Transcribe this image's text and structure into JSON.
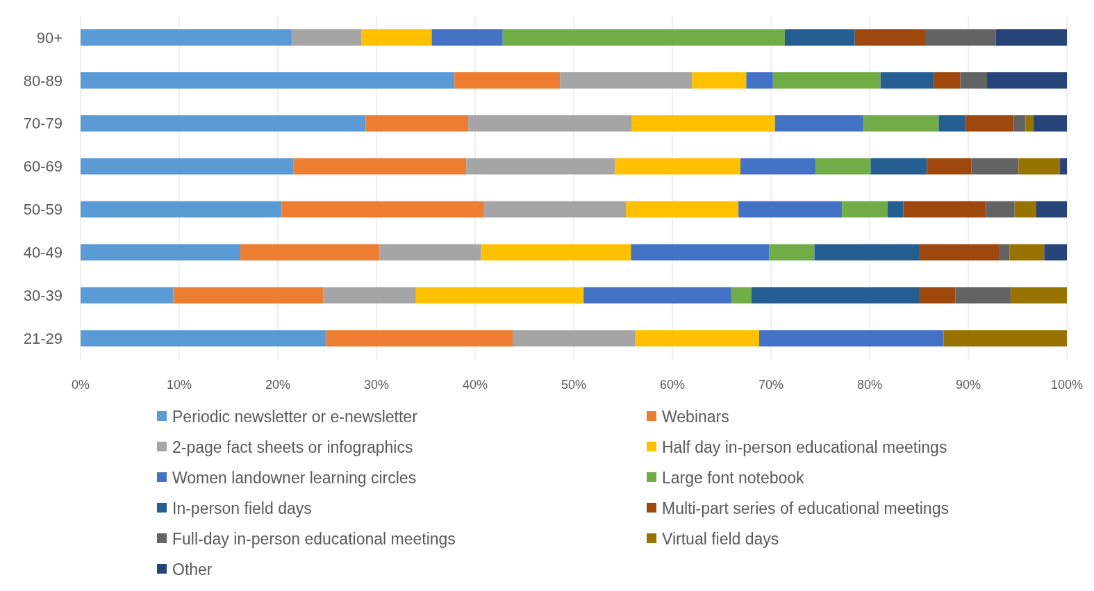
{
  "chart_data": {
    "type": "bar",
    "orientation": "horizontal",
    "stacked": true,
    "categories": [
      "90+",
      "80-89",
      "70-79",
      "60-69",
      "50-59",
      "40-49",
      "30-39",
      "21-29"
    ],
    "xlim": [
      0,
      100
    ],
    "xticks": [
      {
        "value": 0,
        "label": "0%"
      },
      {
        "value": 10,
        "label": "10%"
      },
      {
        "value": 20,
        "label": "20%"
      },
      {
        "value": 30,
        "label": "30%"
      },
      {
        "value": 40,
        "label": "40%"
      },
      {
        "value": 50,
        "label": "50%"
      },
      {
        "value": 60,
        "label": "60%"
      },
      {
        "value": 70,
        "label": "70%"
      },
      {
        "value": 80,
        "label": "80%"
      },
      {
        "value": 90,
        "label": "90%"
      },
      {
        "value": 100,
        "label": "100%"
      }
    ],
    "grid": "x",
    "legend": "bottom",
    "series": [
      {
        "name": "Periodic newsletter or e-newsletter",
        "color": "#5b9bd5",
        "values": [
          21.4,
          37.9,
          28.9,
          21.6,
          20.4,
          16.2,
          9.4,
          24.9
        ]
      },
      {
        "name": "Webinars",
        "color": "#ed7d31",
        "values": [
          0,
          10.7,
          10.4,
          17.5,
          20.5,
          14.1,
          15.2,
          18.9
        ]
      },
      {
        "name": "2-page fact sheets or infographics",
        "color": "#a5a5a5",
        "values": [
          7.1,
          13.4,
          16.6,
          15.1,
          14.4,
          10.3,
          9.4,
          12.4
        ]
      },
      {
        "name": "Half day in-person educational meetings",
        "color": "#ffc000",
        "values": [
          7.1,
          5.5,
          14.5,
          12.7,
          11.4,
          15.2,
          17.0,
          12.6
        ]
      },
      {
        "name": "Women landowner learning circles",
        "color": "#4472c4",
        "values": [
          7.2,
          2.7,
          9.0,
          7.6,
          10.5,
          14.0,
          15.0,
          18.7
        ]
      },
      {
        "name": "Large font notebook",
        "color": "#70ad47",
        "values": [
          28.6,
          10.9,
          7.6,
          5.6,
          4.6,
          4.6,
          2.0,
          0
        ]
      },
      {
        "name": "In-person field days",
        "color": "#255e91",
        "values": [
          7.1,
          5.4,
          2.7,
          5.7,
          1.6,
          10.6,
          17.0,
          0
        ]
      },
      {
        "name": "Multi-part series of educational meetings",
        "color": "#9e480e",
        "values": [
          7.2,
          2.7,
          4.9,
          4.5,
          8.4,
          8.1,
          3.7,
          0
        ]
      },
      {
        "name": "Full-day in-person educational meetings",
        "color": "#636363",
        "values": [
          7.1,
          2.7,
          1.2,
          4.8,
          2.9,
          1.1,
          5.6,
          0
        ]
      },
      {
        "name": "Virtual field days",
        "color": "#997300",
        "values": [
          0,
          0,
          0.8,
          4.2,
          2.2,
          3.5,
          5.7,
          12.5
        ]
      },
      {
        "name": "Other",
        "color": "#264478",
        "values": [
          7.2,
          8.1,
          3.4,
          0.7,
          3.1,
          2.3,
          0,
          0
        ]
      }
    ]
  }
}
